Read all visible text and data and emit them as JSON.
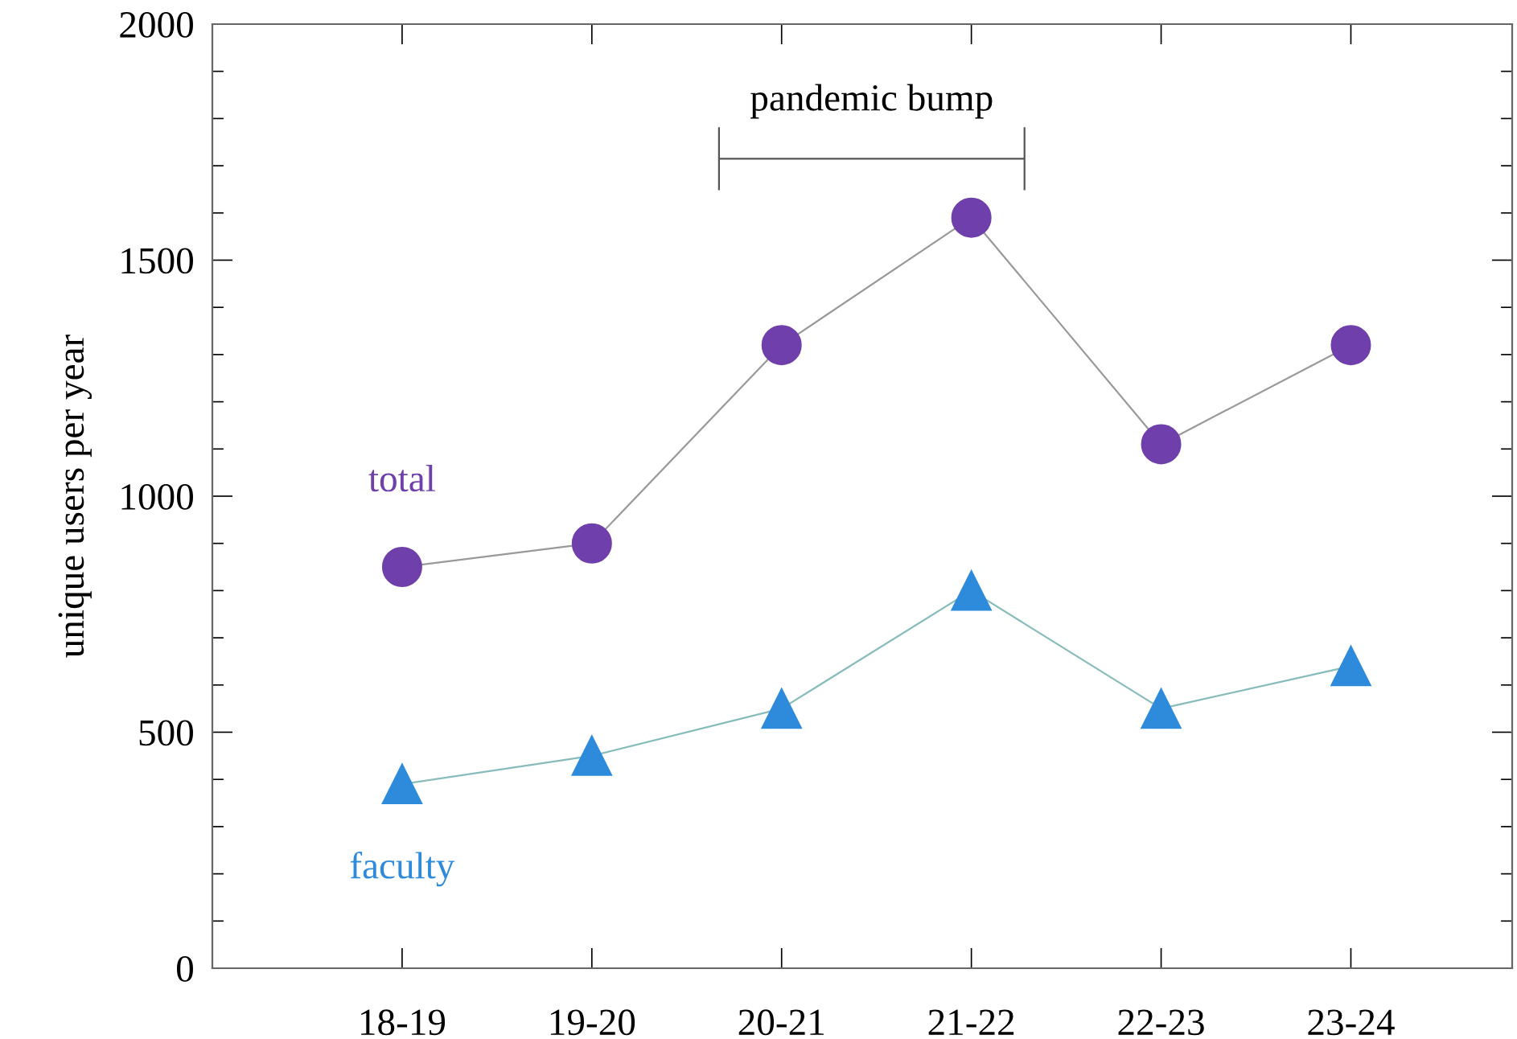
{
  "chart_data": {
    "type": "line",
    "ylabel": "unique users per year",
    "categories": [
      "18-19",
      "19-20",
      "20-21",
      "21-22",
      "22-23",
      "23-24"
    ],
    "series": [
      {
        "name": "total",
        "color": "#6f3fab",
        "marker": "circle",
        "values": [
          850,
          900,
          1320,
          1590,
          1110,
          1320
        ]
      },
      {
        "name": "faculty",
        "color": "#2e8bdc",
        "marker": "triangle",
        "values": [
          390,
          450,
          550,
          800,
          550,
          640
        ]
      }
    ],
    "ylim": [
      0,
      2000
    ],
    "yticks": [
      0,
      500,
      1000,
      1500,
      2000
    ],
    "grid": false,
    "legend": false,
    "line_style": "solid",
    "annotations": [
      "pandemic bump"
    ]
  }
}
